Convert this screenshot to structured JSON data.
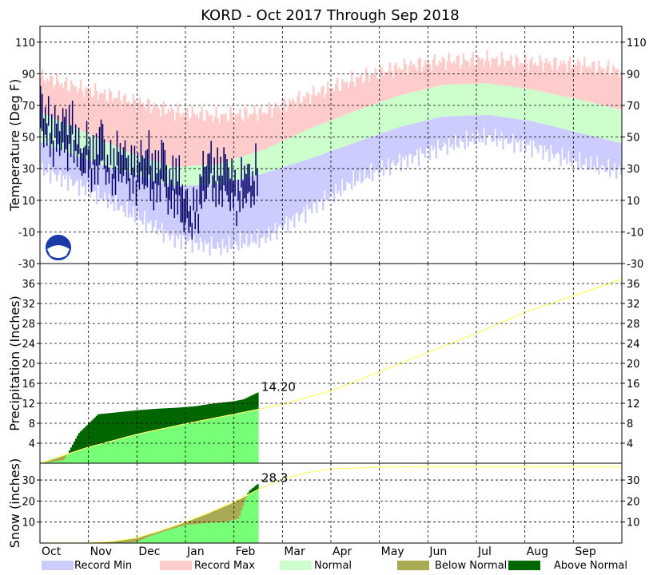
{
  "title": "KORD - Oct 2017 Through Sep 2018",
  "months": [
    "Oct",
    "Nov",
    "Dec",
    "Jan",
    "Feb",
    "Mar",
    "Apr",
    "May",
    "Jun",
    "Jul",
    "Aug",
    "Sep"
  ],
  "colors": {
    "record_min": "#ccccff",
    "record_max": "#ffcccc",
    "normal": "#ccffcc",
    "observed": "#000066",
    "below_normal": "#aaaa55",
    "above_normal": "#006600",
    "observed_precip": "#77ff77",
    "normal_line": "#ffff66"
  },
  "legend": [
    {
      "label": "Record Min",
      "color": "#ccccff"
    },
    {
      "label": "Record Max",
      "color": "#ffcccc"
    },
    {
      "label": "Normal",
      "color": "#ccffcc"
    },
    {
      "label": "Below Normal",
      "color": "#aaaa55"
    },
    {
      "label": "Above Normal",
      "color": "#006600"
    }
  ],
  "chart_data": [
    {
      "type": "area",
      "panel": "temperature",
      "ylabel": "Temperature (Deg F)",
      "ylim": [
        -30,
        120
      ],
      "yticks": [
        -30,
        -10,
        10,
        30,
        50,
        70,
        90,
        110
      ],
      "x_months": [
        "Oct",
        "Nov",
        "Dec",
        "Jan",
        "Feb",
        "Mar",
        "Apr",
        "May",
        "Jun",
        "Jul",
        "Aug",
        "Sep"
      ],
      "record_max": [
        88,
        80,
        73,
        66,
        63,
        66,
        76,
        86,
        94,
        98,
        99,
        97,
        96,
        92
      ],
      "normal_high": [
        66,
        53,
        40,
        31,
        33,
        42,
        55,
        66,
        76,
        83,
        84,
        80,
        74,
        67
      ],
      "normal_low": [
        47,
        36,
        27,
        19,
        20,
        27,
        36,
        46,
        56,
        63,
        64,
        60,
        53,
        46
      ],
      "record_min": [
        30,
        18,
        2,
        -14,
        -20,
        -14,
        4,
        22,
        34,
        44,
        50,
        44,
        34,
        28
      ],
      "observed_high": [
        79,
        64,
        59,
        61,
        64,
        60,
        42,
        50,
        38,
        60,
        33,
        40,
        46,
        36,
        34,
        40,
        44,
        28,
        47,
        23,
        32,
        19,
        5,
        8,
        34,
        40,
        29,
        38,
        31,
        15,
        33,
        25,
        37
      ],
      "observed_low": [
        52,
        49,
        40,
        44,
        38,
        43,
        28,
        30,
        22,
        34,
        24,
        20,
        27,
        20,
        16,
        22,
        18,
        10,
        22,
        5,
        10,
        -5,
        -8,
        -4,
        10,
        21,
        11,
        15,
        9,
        4,
        12,
        10,
        18
      ]
    },
    {
      "type": "area",
      "panel": "precipitation",
      "ylabel": "Precipitation (Inches)",
      "ylim": [
        0,
        40
      ],
      "yticks": [
        4,
        8,
        12,
        16,
        20,
        24,
        28,
        32,
        36
      ],
      "annotation": "14.20",
      "observed_x": [
        0,
        0.5,
        0.8,
        1.2,
        1.6,
        2.0,
        2.4,
        2.8,
        3.2,
        3.6,
        4.0,
        4.2,
        4.5
      ],
      "observed_y": [
        0,
        0.6,
        6.0,
        9.8,
        10.2,
        10.6,
        10.9,
        11.1,
        11.4,
        12.0,
        12.4,
        12.8,
        14.2
      ],
      "normal_x": [
        0,
        1,
        2,
        3,
        4,
        5,
        6,
        7,
        8,
        9,
        10,
        11,
        12
      ],
      "normal_y": [
        0,
        3.2,
        5.8,
        7.9,
        9.8,
        11.8,
        14.5,
        18.3,
        22.2,
        26.0,
        30.2,
        33.5,
        36.9
      ]
    },
    {
      "type": "area",
      "panel": "snow",
      "ylabel": "Snow (inches)",
      "ylim": [
        0,
        38
      ],
      "yticks": [
        10,
        20,
        30
      ],
      "annotation": "28.3",
      "observed_x": [
        0,
        1.5,
        2.0,
        2.3,
        2.7,
        3.0,
        3.4,
        3.8,
        4.1,
        4.3,
        4.5
      ],
      "observed_y": [
        0,
        0,
        0.5,
        3.5,
        6.5,
        8.5,
        9.5,
        10.0,
        11.5,
        24.5,
        28.3
      ],
      "normal_x": [
        0,
        1,
        1.5,
        2,
        2.5,
        3,
        3.5,
        4,
        4.5,
        5,
        5.5,
        6,
        7,
        8,
        9,
        10,
        11,
        12
      ],
      "normal_y": [
        0,
        0.1,
        0.8,
        2.5,
        6,
        10,
        14.5,
        19.5,
        25.5,
        30.5,
        33.5,
        35.2,
        36.2,
        36.3,
        36.3,
        36.3,
        36.3,
        36.3
      ]
    }
  ]
}
